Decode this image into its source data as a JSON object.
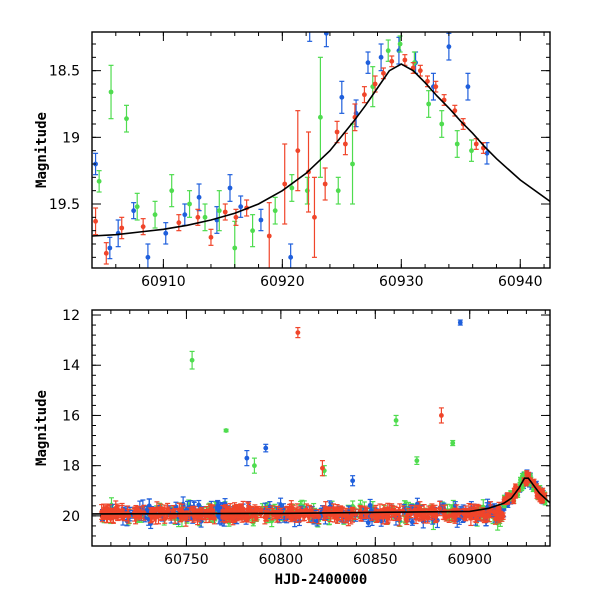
{
  "chart_data": [
    {
      "type": "scatter",
      "ylabel": "Magnitude",
      "xlabel": "",
      "xlim": [
        60904,
        60942.5
      ],
      "ylim": [
        19.98,
        18.21
      ],
      "x_ticks": [
        60910,
        60920,
        60930,
        60940
      ],
      "y_ticks": [
        18.5,
        19,
        19.5
      ],
      "y_tick_labels": [
        "18.5",
        "19",
        "19.5"
      ],
      "colors": {
        "blue": "#1f5fdc",
        "green": "#4fdc4f",
        "red": "#f0452a",
        "curve": "#000000"
      },
      "model_curve": {
        "x": [
          60904,
          60906,
          60908,
          60910,
          60912,
          60914,
          60916,
          60918,
          60920,
          60922,
          60924,
          60926,
          60927,
          60928,
          60929,
          60930,
          60931,
          60932,
          60933,
          60934,
          60935,
          60936,
          60937,
          60938,
          60940,
          60942.5
        ],
        "y": [
          19.74,
          19.73,
          19.71,
          19.69,
          19.66,
          19.62,
          19.57,
          19.5,
          19.4,
          19.27,
          19.1,
          18.88,
          18.76,
          18.63,
          18.5,
          18.45,
          18.5,
          18.59,
          18.69,
          18.78,
          18.88,
          18.97,
          19.07,
          19.16,
          19.32,
          19.48
        ]
      },
      "series": [
        {
          "color": "blue",
          "points": [
            [
              60904.3,
              19.2,
              0.08
            ],
            [
              60905.5,
              19.83,
              0.08
            ],
            [
              60906.2,
              19.72,
              0.1
            ],
            [
              60907.5,
              19.55,
              0.06
            ],
            [
              60908.7,
              19.9,
              0.1
            ],
            [
              60910.2,
              19.72,
              0.08
            ],
            [
              60911.8,
              19.58,
              0.08
            ],
            [
              60913.0,
              19.45,
              0.1
            ],
            [
              60914.5,
              19.62,
              0.1
            ],
            [
              60915.6,
              19.38,
              0.1
            ],
            [
              60916.5,
              19.52,
              0.08
            ],
            [
              60918.2,
              19.62,
              0.08
            ],
            [
              60920.7,
              19.9,
              0.1
            ],
            [
              60922.3,
              18.18,
              0.1
            ],
            [
              60923.7,
              18.22,
              0.1
            ],
            [
              60925.0,
              18.7,
              0.12
            ],
            [
              60926.2,
              18.82,
              0.1
            ],
            [
              60927.2,
              18.44,
              0.08
            ],
            [
              60928.3,
              18.4,
              0.1
            ],
            [
              60929.8,
              18.35,
              0.1
            ],
            [
              60931.2,
              18.44,
              0.08
            ],
            [
              60932.7,
              18.62,
              0.1
            ],
            [
              60934.0,
              18.32,
              0.1
            ],
            [
              60935.6,
              18.62,
              0.1
            ],
            [
              60937.2,
              19.12,
              0.08
            ]
          ]
        },
        {
          "color": "green",
          "points": [
            [
              60904.6,
              19.33,
              0.08
            ],
            [
              60905.6,
              18.66,
              0.2
            ],
            [
              60906.9,
              18.86,
              0.1
            ],
            [
              60907.8,
              19.52,
              0.1
            ],
            [
              60909.3,
              19.58,
              0.1
            ],
            [
              60910.7,
              19.4,
              0.12
            ],
            [
              60912.2,
              19.5,
              0.1
            ],
            [
              60913.5,
              19.6,
              0.1
            ],
            [
              60914.7,
              19.55,
              0.15
            ],
            [
              60916.0,
              19.83,
              0.2
            ],
            [
              60917.5,
              19.7,
              0.12
            ],
            [
              60919.4,
              19.55,
              0.1
            ],
            [
              60920.8,
              19.38,
              0.1
            ],
            [
              60922.1,
              19.4,
              0.1
            ],
            [
              60923.2,
              18.85,
              0.45
            ],
            [
              60924.7,
              19.4,
              0.1
            ],
            [
              60925.9,
              19.2,
              0.3
            ],
            [
              60927.6,
              18.62,
              0.15
            ],
            [
              60928.9,
              18.35,
              0.08
            ],
            [
              60929.9,
              18.3,
              0.06
            ],
            [
              60931.1,
              18.44,
              0.08
            ],
            [
              60932.3,
              18.75,
              0.1
            ],
            [
              60933.4,
              18.9,
              0.1
            ],
            [
              60934.7,
              19.05,
              0.1
            ],
            [
              60935.9,
              19.1,
              0.08
            ]
          ]
        },
        {
          "color": "red",
          "points": [
            [
              60904.3,
              19.63,
              0.1
            ],
            [
              60905.2,
              19.87,
              0.08
            ],
            [
              60906.5,
              19.68,
              0.08
            ],
            [
              60908.3,
              19.67,
              0.06
            ],
            [
              60911.3,
              19.64,
              0.06
            ],
            [
              60912.9,
              19.6,
              0.06
            ],
            [
              60914.0,
              19.75,
              0.06
            ],
            [
              60915.2,
              19.56,
              0.06
            ],
            [
              60916.1,
              19.6,
              0.06
            ],
            [
              60917.0,
              19.53,
              0.06
            ],
            [
              60918.9,
              19.74,
              0.25
            ],
            [
              60920.2,
              19.35,
              0.3
            ],
            [
              60921.3,
              19.1,
              0.3
            ],
            [
              60922.2,
              19.26,
              0.3
            ],
            [
              60922.7,
              19.6,
              0.3
            ],
            [
              60923.6,
              19.35,
              0.12
            ],
            [
              60924.6,
              18.96,
              0.08
            ],
            [
              60925.3,
              19.05,
              0.08
            ],
            [
              60926.1,
              18.85,
              0.1
            ],
            [
              60926.9,
              18.68,
              0.06
            ],
            [
              60927.8,
              18.6,
              0.06
            ],
            [
              60928.5,
              18.52,
              0.04
            ],
            [
              60929.2,
              18.43,
              0.04
            ],
            [
              60930.3,
              18.42,
              0.04
            ],
            [
              60931.0,
              18.48,
              0.04
            ],
            [
              60931.6,
              18.5,
              0.04
            ],
            [
              60932.2,
              18.58,
              0.04
            ],
            [
              60932.9,
              18.62,
              0.04
            ],
            [
              60933.6,
              18.72,
              0.04
            ],
            [
              60934.5,
              18.8,
              0.04
            ],
            [
              60935.2,
              18.9,
              0.04
            ],
            [
              60936.3,
              19.05,
              0.04
            ],
            [
              60936.9,
              19.08,
              0.04
            ]
          ]
        }
      ]
    },
    {
      "type": "scatter",
      "ylabel": "Magnitude",
      "xlabel": "HJD-2400000",
      "xlim": [
        60700,
        60942.5
      ],
      "ylim": [
        21.2,
        11.8
      ],
      "x_ticks": [
        60750,
        60800,
        60850,
        60900
      ],
      "y_ticks": [
        12,
        14,
        16,
        18,
        20
      ],
      "y_tick_labels": [
        "12",
        "14",
        "16",
        "18",
        "20"
      ],
      "colors": {
        "blue": "#1f5fdc",
        "green": "#4fdc4f",
        "red": "#f0452a",
        "curve": "#000000"
      },
      "model_curve": {
        "x": [
          60700,
          60800,
          60900,
          60910,
          60918,
          60922,
          60926,
          60929,
          60931,
          60934,
          60937,
          60942.5
        ],
        "y": [
          19.92,
          19.9,
          19.82,
          19.7,
          19.5,
          19.3,
          18.9,
          18.5,
          18.5,
          18.8,
          19.1,
          19.48
        ]
      },
      "outliers": [
        {
          "color": "green",
          "x": 60753,
          "y": 13.8,
          "err": 0.35
        },
        {
          "color": "red",
          "x": 60809,
          "y": 12.7,
          "err": 0.2
        },
        {
          "color": "blue",
          "x": 60895,
          "y": 12.3,
          "err": 0.1
        },
        {
          "color": "green",
          "x": 60771,
          "y": 16.6,
          "err": 0.05
        },
        {
          "color": "blue",
          "x": 60792,
          "y": 17.3,
          "err": 0.15
        },
        {
          "color": "green",
          "x": 60861,
          "y": 16.2,
          "err": 0.2
        },
        {
          "color": "red",
          "x": 60885,
          "y": 16.0,
          "err": 0.3
        },
        {
          "color": "green",
          "x": 60891,
          "y": 17.1,
          "err": 0.1
        },
        {
          "color": "blue",
          "x": 60782,
          "y": 17.7,
          "err": 0.3
        },
        {
          "color": "green",
          "x": 60786,
          "y": 18.0,
          "err": 0.3
        },
        {
          "color": "green",
          "x": 60872,
          "y": 17.8,
          "err": 0.15
        },
        {
          "color": "green",
          "x": 60823,
          "y": 18.2,
          "err": 0.2
        },
        {
          "color": "red",
          "x": 60822,
          "y": 18.1,
          "err": 0.3
        },
        {
          "color": "blue",
          "x": 60838,
          "y": 18.6,
          "err": 0.2
        }
      ],
      "baseline": {
        "x_start": 60705,
        "x_end": 60918,
        "y_mean": 19.9,
        "y_spread": 0.35
      }
    }
  ]
}
